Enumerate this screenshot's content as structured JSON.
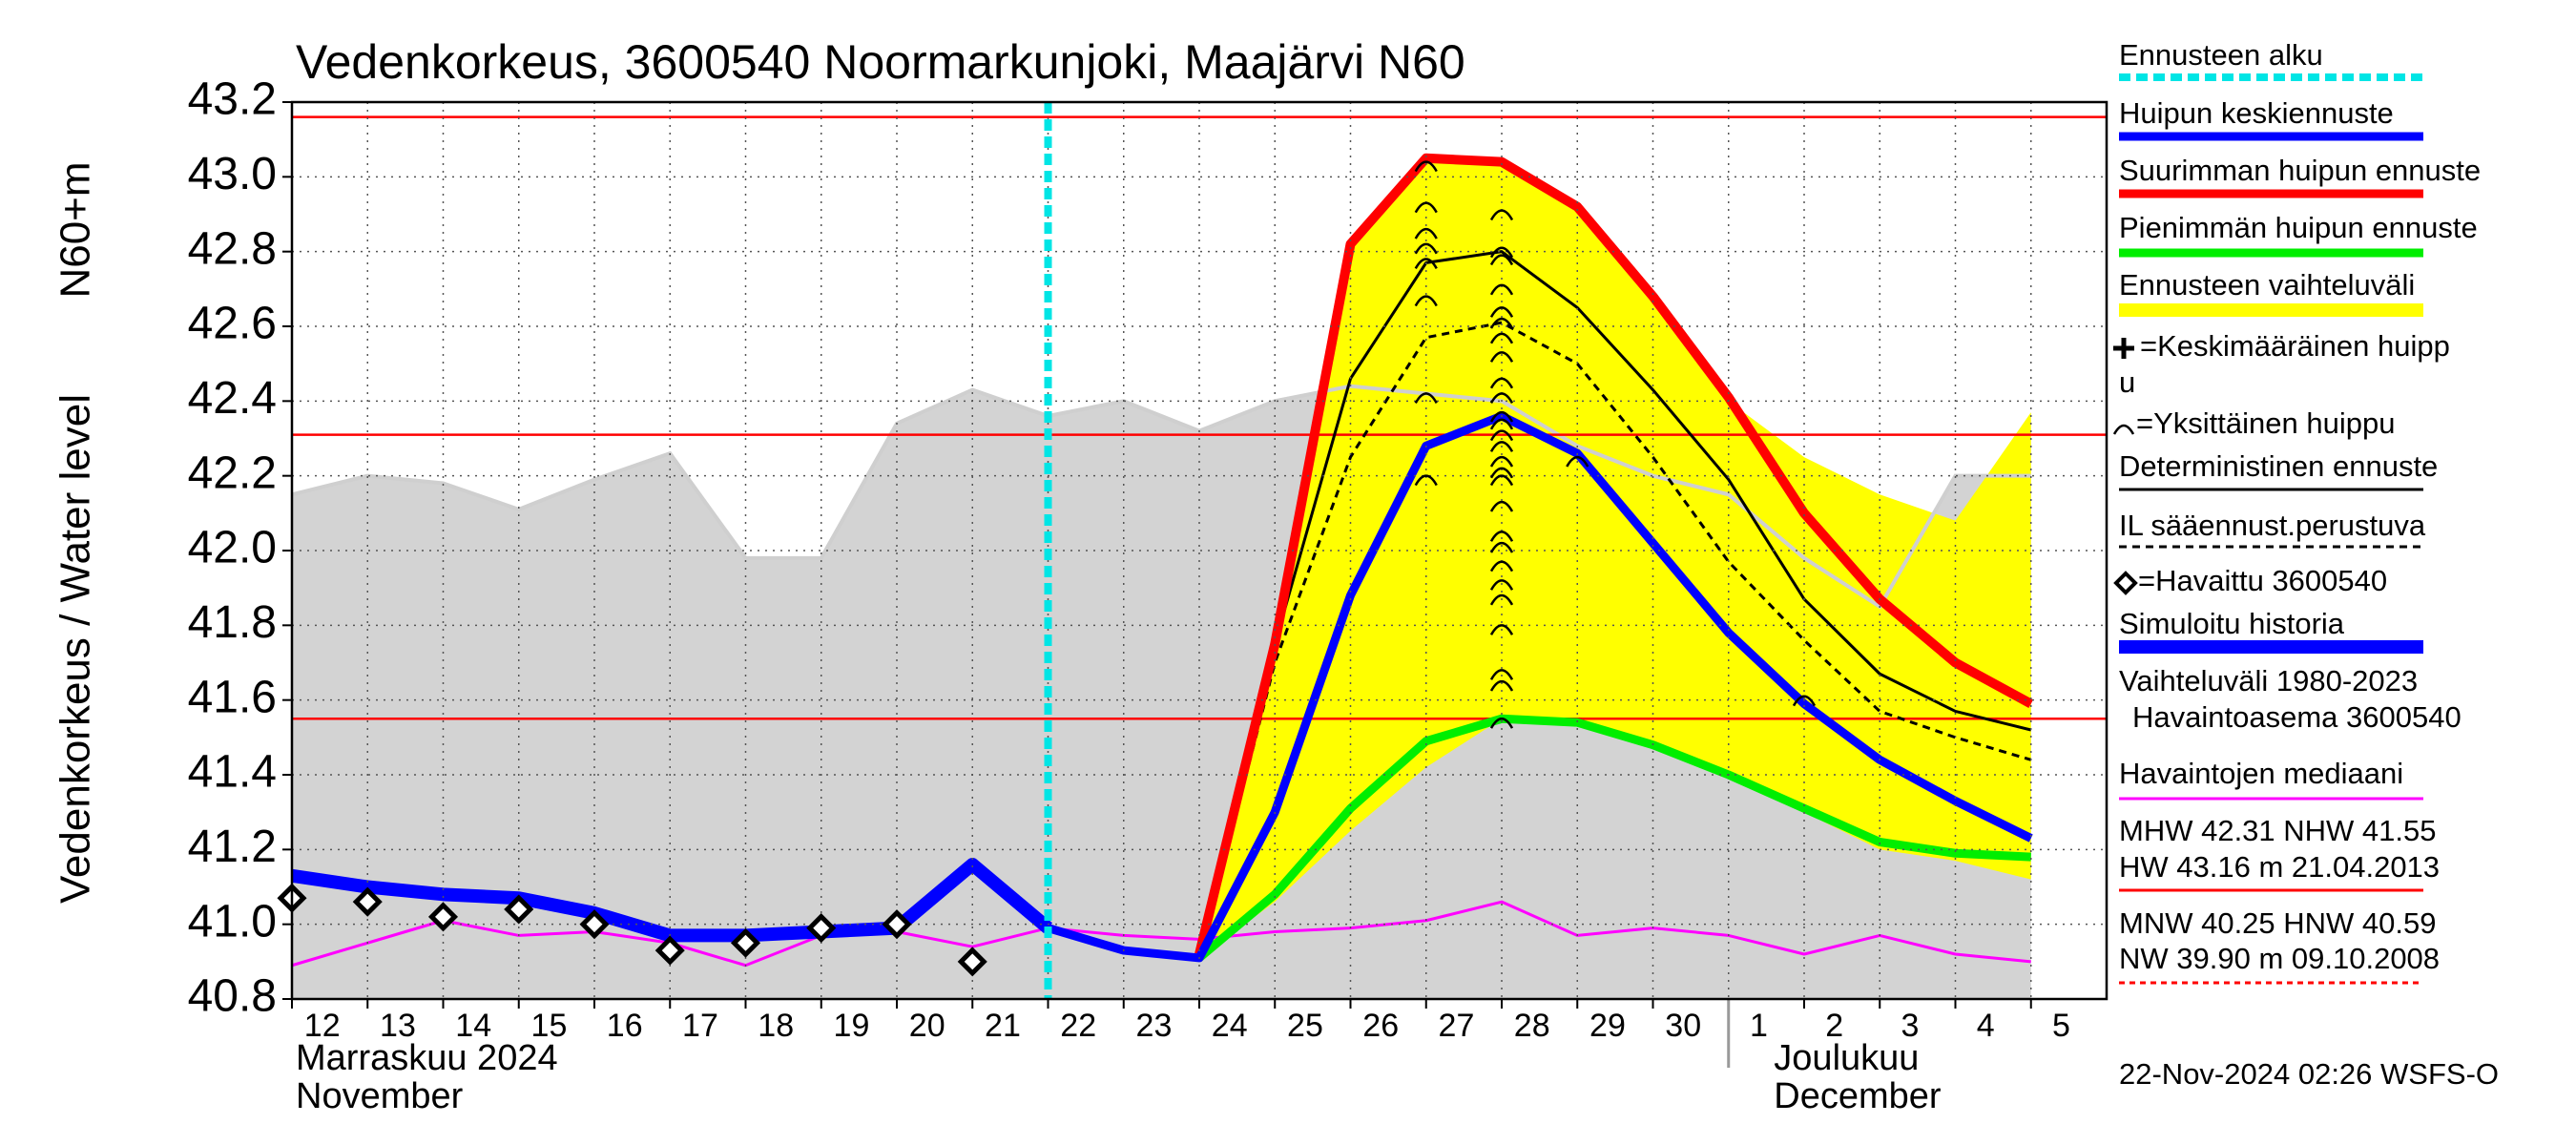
{
  "chart_data": {
    "type": "line",
    "title": "Vedenkorkeus, 3600540 Noormarkunjoki, Maajärvi N60",
    "y_label": "Vedenkorkeus / Water level",
    "y_unit_label": "N60+m",
    "categories": [
      "12",
      "13",
      "14",
      "15",
      "16",
      "17",
      "18",
      "19",
      "20",
      "21",
      "22",
      "23",
      "24",
      "25",
      "26",
      "27",
      "28",
      "29",
      "30",
      "1",
      "2",
      "3",
      "4",
      "5"
    ],
    "months": [
      {
        "label": [
          "Marraskuu 2024",
          "November"
        ],
        "at": "12"
      },
      {
        "label": [
          "Joulukuu",
          "December"
        ],
        "at": "1"
      }
    ],
    "ylim": [
      40.8,
      43.2
    ],
    "yticks": [
      40.8,
      {
        "value": 41,
        "label": "41.0"
      },
      41.2,
      41.4,
      41.6,
      41.8,
      {
        "value": 42,
        "label": "42.0"
      },
      42.2,
      42.4,
      42.6,
      42.8,
      {
        "value": 43,
        "label": "43.0"
      },
      43.2
    ],
    "grid": true,
    "forecast_start": {
      "name": "Ennusteen alku",
      "at": "22",
      "color": "#00e5e5"
    },
    "series": [
      {
        "name": "Huipun keskiennuste",
        "style": "line",
        "color": "#0000ff",
        "values": [
          null,
          null,
          null,
          null,
          null,
          null,
          null,
          null,
          null,
          null,
          40.99,
          40.93,
          40.91,
          41.3,
          41.88,
          42.28,
          42.36,
          42.26,
          42.02,
          41.78,
          41.59,
          41.44,
          41.33,
          41.23
        ]
      },
      {
        "name": "Suurimman huipun ennuste",
        "style": "line",
        "color": "#ff0000",
        "values": [
          null,
          null,
          null,
          null,
          null,
          null,
          null,
          null,
          null,
          null,
          null,
          null,
          40.92,
          41.75,
          42.82,
          43.05,
          43.04,
          42.92,
          42.68,
          42.41,
          42.1,
          41.87,
          41.7,
          41.59
        ]
      },
      {
        "name": "Pienimmän huipun ennuste",
        "style": "line",
        "color": "#00ee00",
        "values": [
          null,
          null,
          null,
          null,
          null,
          null,
          null,
          null,
          null,
          null,
          null,
          null,
          40.91,
          41.08,
          41.31,
          41.49,
          41.55,
          41.54,
          41.48,
          41.4,
          41.31,
          41.22,
          41.19,
          41.18
        ]
      },
      {
        "name": "Ennusteen vaihteluväli",
        "style": "band",
        "color": "#ffff00",
        "upper": [
          null,
          null,
          null,
          null,
          null,
          null,
          null,
          null,
          null,
          null,
          null,
          null,
          40.91,
          41.75,
          42.82,
          43.04,
          43.03,
          42.92,
          42.67,
          42.4,
          42.25,
          42.15,
          42.08,
          42.37
        ],
        "lower": [
          null,
          null,
          null,
          null,
          null,
          null,
          null,
          null,
          null,
          null,
          null,
          null,
          40.91,
          41.06,
          41.25,
          41.42,
          41.55,
          41.55,
          41.48,
          41.4,
          41.3,
          41.2,
          41.17,
          41.12
        ]
      },
      {
        "name": [
          "=Keskimääräinen huipp",
          "u"
        ],
        "style": "mean-peak",
        "color": "#000000"
      },
      {
        "name": "=Yksittäinen huippu",
        "style": "peak",
        "color": "#000000",
        "x": [
          "27",
          "27",
          "27",
          "27",
          "27",
          "27",
          "27",
          "27",
          "28",
          "28",
          "28",
          "28",
          "28",
          "28",
          "28",
          "28",
          "28",
          "28",
          "28",
          "28",
          "28",
          "28",
          "28",
          "28",
          "28",
          "28",
          "28",
          "28",
          "28",
          "28",
          "28",
          "28",
          "28",
          "28",
          "28",
          "29",
          "2"
        ],
        "values": [
          43.04,
          42.93,
          42.86,
          42.82,
          42.78,
          42.68,
          42.42,
          42.2,
          42.91,
          42.81,
          42.79,
          42.71,
          42.65,
          42.62,
          42.58,
          42.53,
          42.46,
          42.42,
          42.37,
          42.35,
          42.32,
          42.29,
          42.25,
          42.22,
          42.2,
          42.13,
          42.05,
          42.02,
          41.97,
          41.92,
          41.88,
          41.8,
          41.68,
          41.65,
          41.55,
          42.25,
          41.61
        ]
      },
      {
        "name": "Deterministinen ennuste",
        "style": "line",
        "color": "#000000",
        "values": [
          null,
          null,
          null,
          null,
          null,
          null,
          null,
          null,
          null,
          null,
          40.99,
          40.93,
          40.91,
          41.75,
          42.46,
          42.77,
          42.8,
          42.65,
          42.43,
          42.19,
          41.87,
          41.67,
          41.57,
          41.52
        ]
      },
      {
        "name": "IL sääennust.perustuva",
        "style": "dashed",
        "color": "#000000",
        "values": [
          null,
          null,
          null,
          null,
          null,
          null,
          null,
          null,
          null,
          null,
          null,
          null,
          40.91,
          41.7,
          42.25,
          42.57,
          42.61,
          42.5,
          42.25,
          41.97,
          41.76,
          41.57,
          41.5,
          41.44
        ]
      },
      {
        "name": "=Havaittu 3600540",
        "style": "diamond",
        "color": "#000000",
        "values": [
          41.07,
          41.06,
          41.02,
          41.04,
          41.0,
          40.93,
          40.95,
          40.99,
          41.0,
          40.9,
          null,
          null,
          null,
          null,
          null,
          null,
          null,
          null,
          null,
          null,
          null,
          null,
          null,
          null
        ]
      },
      {
        "name": "Simuloitu historia",
        "style": "line",
        "color": "#0000ff",
        "values": [
          41.13,
          41.1,
          41.08,
          41.07,
          41.03,
          40.97,
          40.97,
          40.98,
          40.99,
          41.16,
          40.99,
          null,
          null,
          null,
          null,
          null,
          null,
          null,
          null,
          null,
          null,
          null,
          null,
          null
        ]
      },
      {
        "name": [
          "Vaihteluväli 1980-2023",
          "Havaintoasema 3600540"
        ],
        "style": "band",
        "color": "#d3d3d3",
        "upper": [
          42.15,
          42.2,
          42.18,
          42.11,
          42.19,
          42.26,
          41.98,
          41.98,
          42.34,
          42.43,
          42.36,
          42.4,
          42.32,
          42.4,
          42.44,
          42.42,
          42.4,
          42.28,
          42.2,
          42.15,
          41.98,
          41.85,
          42.2,
          42.2
        ],
        "lower": [
          40.8,
          40.8,
          40.8,
          40.8,
          40.8,
          40.8,
          40.8,
          40.8,
          40.8,
          40.8,
          40.8,
          40.8,
          40.8,
          40.8,
          40.8,
          40.8,
          40.8,
          40.8,
          40.8,
          40.8,
          40.8,
          40.8,
          40.8,
          40.8
        ]
      },
      {
        "name": "Havaintojen mediaani",
        "style": "line",
        "color": "#ff00ff",
        "values": [
          40.89,
          40.95,
          41.01,
          40.97,
          40.98,
          40.95,
          40.89,
          40.97,
          40.98,
          40.94,
          40.99,
          40.97,
          40.96,
          40.98,
          40.99,
          41.01,
          41.06,
          40.97,
          40.99,
          40.97,
          40.92,
          40.97,
          40.92,
          40.9
        ]
      }
    ],
    "reference_lines": {
      "color": "#ff0000",
      "values": [
        43.16,
        42.31,
        41.55
      ]
    },
    "stats": [
      "MHW  42.31 NHW  41.55",
      "HW  43.16 m 21.04.2013",
      "MNW  40.25 HNW  40.59",
      "NW  39.90 m 09.10.2008"
    ],
    "footer": "22-Nov-2024 02:26 WSFS-O"
  }
}
